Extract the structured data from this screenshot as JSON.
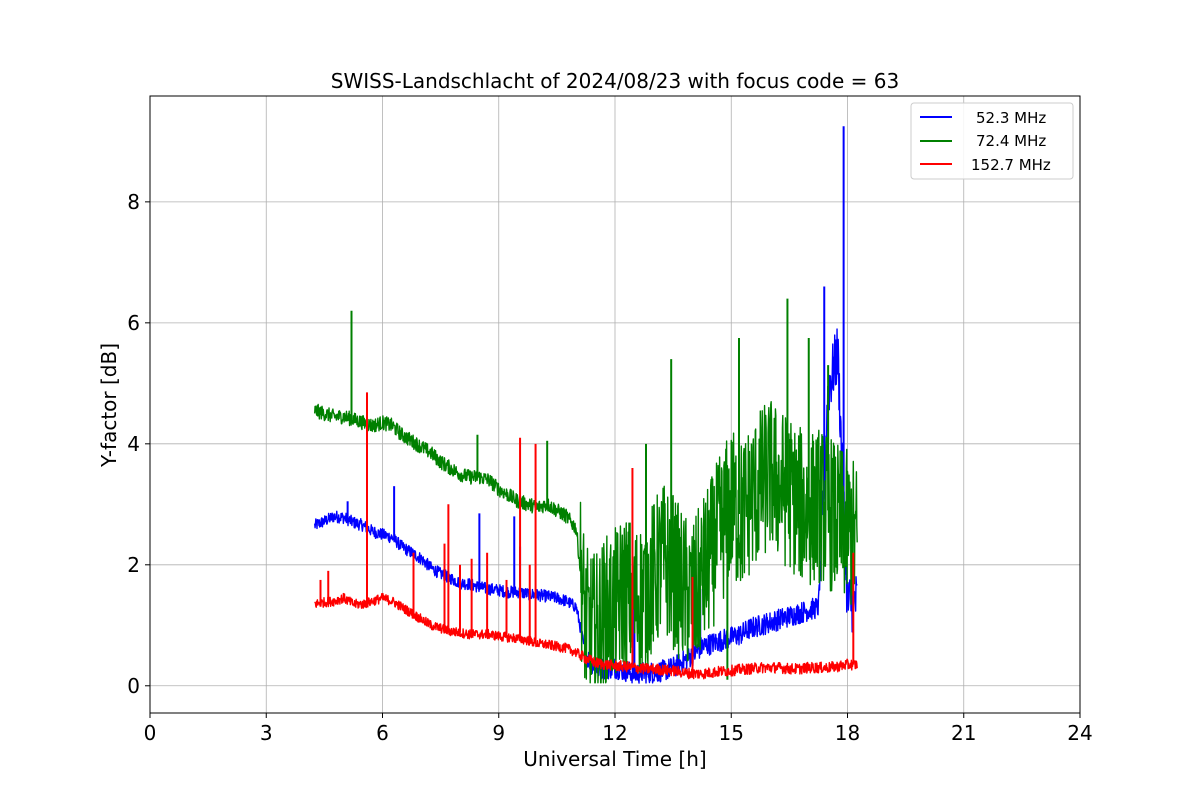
{
  "chart_data": {
    "type": "line",
    "title": "SWISS-Landschlacht of 2024/08/23 with focus code = 63",
    "xlabel": "Universal Time [h]",
    "ylabel": "Y-factor [dB]",
    "xlim": [
      0,
      24
    ],
    "ylim": [
      -0.45,
      9.75
    ],
    "xticks": [
      0,
      3,
      6,
      9,
      12,
      15,
      18,
      21,
      24
    ],
    "yticks": [
      0,
      2,
      4,
      6,
      8
    ],
    "grid": true,
    "legend_position": "upper right",
    "series": [
      {
        "name": "52.3 MHz",
        "color": "#0000ff",
        "x": [
          4.25,
          4.5,
          4.75,
          5.0,
          5.25,
          5.5,
          5.75,
          6.0,
          6.25,
          6.5,
          6.75,
          7.0,
          7.25,
          7.5,
          7.75,
          8.0,
          8.25,
          8.5,
          8.75,
          9.0,
          9.25,
          9.5,
          9.75,
          10.0,
          10.25,
          10.5,
          10.75,
          11.0,
          11.25,
          11.5,
          11.75,
          12.0,
          12.25,
          12.5,
          12.75,
          13.0,
          13.25,
          13.5,
          13.75,
          14.0,
          14.25,
          14.5,
          14.75,
          15.0,
          15.25,
          15.5,
          15.75,
          16.0,
          16.25,
          16.5,
          16.75,
          17.0,
          17.25,
          17.5,
          17.75,
          18.0,
          18.25
        ],
        "y": [
          2.65,
          2.72,
          2.8,
          2.78,
          2.7,
          2.65,
          2.55,
          2.5,
          2.45,
          2.3,
          2.2,
          2.1,
          1.95,
          1.85,
          1.78,
          1.7,
          1.68,
          1.63,
          1.6,
          1.58,
          1.55,
          1.55,
          1.52,
          1.5,
          1.48,
          1.45,
          1.4,
          1.3,
          0.5,
          0.3,
          0.28,
          0.3,
          0.25,
          0.2,
          0.22,
          0.22,
          0.25,
          0.3,
          0.4,
          0.5,
          0.65,
          0.7,
          0.75,
          0.8,
          0.85,
          0.95,
          1.0,
          1.05,
          1.1,
          1.15,
          1.2,
          1.25,
          1.3,
          4.9,
          5.5,
          1.35,
          1.4
        ],
        "spikes": [
          [
            5.1,
            3.05
          ],
          [
            6.3,
            3.3
          ],
          [
            8.5,
            2.85
          ],
          [
            9.4,
            2.8
          ],
          [
            9.55,
            2.3
          ],
          [
            12.5,
            1.7
          ],
          [
            14.2,
            1.6
          ],
          [
            17.4,
            6.6
          ],
          [
            17.9,
            9.25
          ],
          [
            17.7,
            5.0
          ]
        ]
      },
      {
        "name": "72.4 MHz",
        "color": "#008000",
        "x": [
          4.25,
          4.5,
          4.75,
          5.0,
          5.25,
          5.5,
          5.75,
          6.0,
          6.25,
          6.5,
          6.75,
          7.0,
          7.25,
          7.5,
          7.75,
          8.0,
          8.25,
          8.5,
          8.75,
          9.0,
          9.25,
          9.5,
          9.75,
          10.0,
          10.25,
          10.5,
          10.75,
          11.0,
          11.25,
          11.5,
          11.75,
          12.0,
          12.25,
          12.5,
          12.75,
          13.0,
          13.25,
          13.5,
          13.75,
          14.0,
          14.25,
          14.5,
          14.75,
          15.0,
          15.25,
          15.5,
          15.75,
          16.0,
          16.25,
          16.5,
          16.75,
          17.0,
          17.25,
          17.5,
          17.75,
          18.0,
          18.25
        ],
        "y": [
          4.55,
          4.5,
          4.45,
          4.45,
          4.4,
          4.35,
          4.3,
          4.35,
          4.3,
          4.15,
          4.05,
          3.95,
          3.85,
          3.7,
          3.6,
          3.5,
          3.45,
          3.45,
          3.4,
          3.25,
          3.15,
          3.05,
          3.0,
          2.95,
          3.0,
          2.9,
          2.8,
          2.6,
          1.0,
          0.9,
          1.2,
          1.3,
          1.6,
          1.4,
          1.5,
          1.8,
          2.1,
          1.9,
          1.6,
          1.4,
          1.8,
          2.2,
          2.6,
          3.0,
          2.8,
          3.1,
          3.3,
          3.5,
          3.3,
          3.2,
          3.0,
          2.9,
          3.0,
          2.9,
          2.7,
          2.6,
          2.4
        ],
        "spikes": [
          [
            5.2,
            6.2
          ],
          [
            8.45,
            4.15
          ],
          [
            10.25,
            4.05
          ],
          [
            13.45,
            5.4
          ],
          [
            15.2,
            5.75
          ],
          [
            16.45,
            6.4
          ],
          [
            17.0,
            5.75
          ],
          [
            17.5,
            5.3
          ],
          [
            12.8,
            4.0
          ],
          [
            14.9,
            0.1
          ]
        ]
      },
      {
        "name": "152.7 MHz",
        "color": "#ff0000",
        "x": [
          4.25,
          4.5,
          4.75,
          5.0,
          5.25,
          5.5,
          5.75,
          6.0,
          6.25,
          6.5,
          6.75,
          7.0,
          7.25,
          7.5,
          7.75,
          8.0,
          8.25,
          8.5,
          8.75,
          9.0,
          9.25,
          9.5,
          9.75,
          10.0,
          10.25,
          10.5,
          10.75,
          11.0,
          11.25,
          11.5,
          11.75,
          12.0,
          12.25,
          12.5,
          12.75,
          13.0,
          13.25,
          13.5,
          13.75,
          14.0,
          14.25,
          14.5,
          14.75,
          15.0,
          15.25,
          15.5,
          15.75,
          16.0,
          16.25,
          16.5,
          16.75,
          17.0,
          17.25,
          17.5,
          17.75,
          18.0,
          18.25
        ],
        "y": [
          1.35,
          1.38,
          1.4,
          1.45,
          1.35,
          1.35,
          1.4,
          1.45,
          1.4,
          1.3,
          1.2,
          1.1,
          1.0,
          0.95,
          0.9,
          0.88,
          0.85,
          0.85,
          0.85,
          0.82,
          0.8,
          0.78,
          0.75,
          0.7,
          0.68,
          0.65,
          0.62,
          0.55,
          0.45,
          0.38,
          0.35,
          0.33,
          0.32,
          0.3,
          0.28,
          0.28,
          0.26,
          0.25,
          0.22,
          0.2,
          0.2,
          0.22,
          0.24,
          0.25,
          0.27,
          0.28,
          0.3,
          0.3,
          0.3,
          0.28,
          0.28,
          0.3,
          0.3,
          0.3,
          0.32,
          0.35,
          0.35
        ],
        "spikes": [
          [
            4.4,
            1.75
          ],
          [
            4.6,
            1.9
          ],
          [
            5.6,
            4.85
          ],
          [
            6.8,
            2.2
          ],
          [
            7.6,
            2.35
          ],
          [
            7.7,
            3.0
          ],
          [
            8.0,
            2.0
          ],
          [
            8.3,
            2.1
          ],
          [
            8.7,
            2.2
          ],
          [
            9.2,
            1.75
          ],
          [
            9.55,
            4.1
          ],
          [
            9.8,
            2.0
          ],
          [
            9.95,
            4.0
          ],
          [
            12.45,
            3.6
          ],
          [
            14.0,
            1.8
          ],
          [
            18.15,
            2.2
          ]
        ]
      }
    ]
  }
}
